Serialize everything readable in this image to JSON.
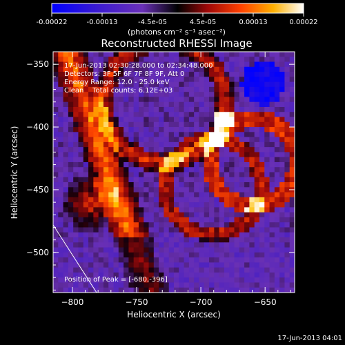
{
  "colorbar": {
    "tick_labels": [
      "-0.00022",
      "-0.00013",
      "-4.5e-05",
      "4.5e-05",
      "0.00013",
      "0.00022"
    ],
    "range": [
      -0.00022,
      0.00022
    ],
    "unit_label": "(photons cm⁻² s⁻¹ asec⁻²)",
    "colors": [
      "#0000ff",
      "#4a20c8",
      "#8a40c0",
      "#000000",
      "#c01010",
      "#ff5a00",
      "#ffc800",
      "#ffffff"
    ]
  },
  "chart_data": {
    "type": "heatmap",
    "title": "Reconstructed RHESSI Image",
    "xlabel": "Heliocentric X (arcsec)",
    "ylabel": "Heliocentric Y (arcsec)",
    "xlim": [
      -815,
      -627
    ],
    "ylim": [
      -532,
      -340
    ],
    "x_ticks": [
      -800,
      -750,
      -700,
      -650
    ],
    "y_ticks": [
      -350,
      -400,
      -450,
      -500
    ],
    "x_tick_labels": [
      "−800",
      "−750",
      "−700",
      "−650"
    ],
    "y_tick_labels": [
      "−350",
      "−400",
      "−450",
      "−500"
    ],
    "annotations": [
      "17-Jun-2013 02:30:28.000 to 02:34:48.000",
      "Detectors: 3F 5F 6F 7F 8F 9F, Att 0",
      "Energy Range: 12.0 - 25.0 keV",
      "Clean    Total counts: 6.12E+03"
    ],
    "peak_label": "Position of Peak = [-680,-396]",
    "peak": [
      -680,
      -396
    ],
    "timestamp": "17-Jun-2013 04:01"
  }
}
